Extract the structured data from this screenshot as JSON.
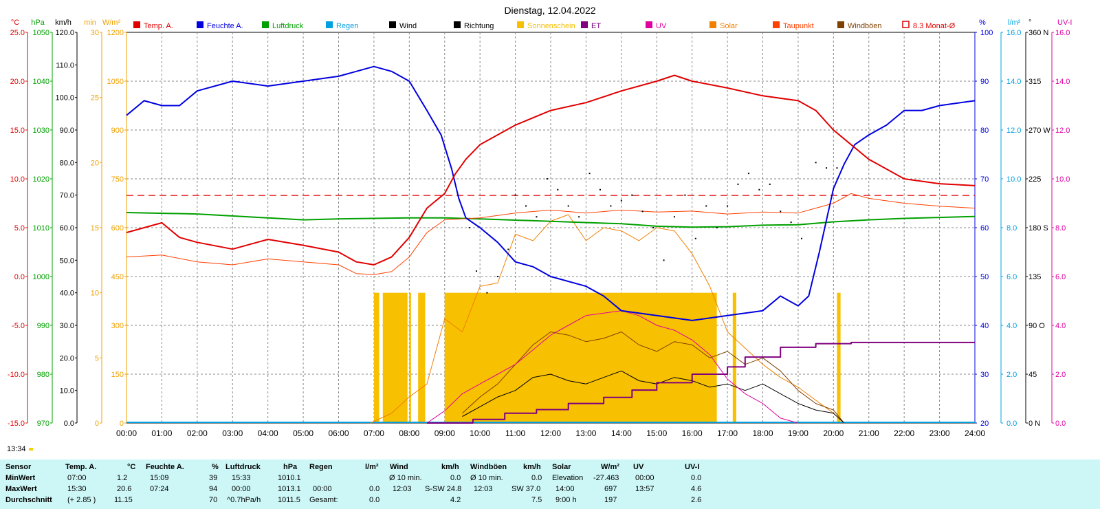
{
  "chart_data": {
    "type": "line",
    "title": "Dienstag, 12.04.2022",
    "x_ticks": [
      "00:00",
      "01:00",
      "02:00",
      "03:00",
      "04:00",
      "05:00",
      "06:00",
      "07:00",
      "08:00",
      "09:00",
      "10:00",
      "11:00",
      "12:00",
      "13:00",
      "14:00",
      "15:00",
      "16:00",
      "17:00",
      "18:00",
      "19:00",
      "20:00",
      "21:00",
      "22:00",
      "23:00",
      "24:00"
    ],
    "grid": true,
    "reference_line": {
      "name": "8.3 Monat-Ø",
      "value_c": 8.3,
      "color": "#e00000"
    },
    "axes_left": [
      {
        "unit": "°C",
        "color": "#e00000",
        "min": -15,
        "max": 25,
        "ticks": [
          "25.0",
          "20.0",
          "15.0",
          "10.0",
          "5.0",
          "0.0",
          "-5.0",
          "-10.0",
          "-15.0"
        ]
      },
      {
        "unit": "hPa",
        "color": "#00a000",
        "min": 970,
        "max": 1050,
        "ticks": [
          "1050",
          "1040",
          "1030",
          "1020",
          "1010",
          "1000",
          "990",
          "980",
          "970"
        ]
      },
      {
        "unit": "km/h",
        "color": "#000000",
        "min": 0,
        "max": 120,
        "ticks": [
          "120.0",
          "110.0",
          "100.0",
          "90.0",
          "80.0",
          "70.0",
          "60.0",
          "50.0",
          "40.0",
          "30.0",
          "20.0",
          "10.0",
          "0.0"
        ]
      },
      {
        "unit": "min",
        "color": "#f0a000",
        "min": 0,
        "max": 30,
        "ticks": [
          "30",
          "25",
          "20",
          "15",
          "10",
          "5",
          "0"
        ]
      },
      {
        "unit": "W/m²",
        "color": "#f0a000",
        "min": 0,
        "max": 1200,
        "ticks": [
          "1200",
          "1050",
          "900",
          "750",
          "600",
          "450",
          "300",
          "150",
          "0"
        ]
      }
    ],
    "axes_right": [
      {
        "unit": "%",
        "color": "#0000e0",
        "min": 20,
        "max": 100,
        "ticks": [
          "100",
          "90",
          "80",
          "70",
          "60",
          "50",
          "40",
          "30",
          "20"
        ]
      },
      {
        "unit": "l/m²",
        "color": "#00a0e0",
        "min": 0,
        "max": 16,
        "ticks": [
          "16.0",
          "14.0",
          "12.0",
          "10.0",
          "8.0",
          "6.0",
          "4.0",
          "2.0",
          "0.0"
        ]
      },
      {
        "unit": "°",
        "color": "#000000",
        "min": 0,
        "max": 360,
        "ticks": [
          "360 N",
          "315",
          "270 W",
          "225",
          "180 S",
          "135",
          "90 O",
          "45",
          "0 N"
        ]
      },
      {
        "unit": "UV-I",
        "color": "#e000a0",
        "min": 0,
        "max": 16,
        "ticks": [
          "16.0",
          "14.0",
          "12.0",
          "10.0",
          "8.0",
          "6.0",
          "4.0",
          "2.0",
          "0.0"
        ]
      }
    ],
    "legend": [
      {
        "name": "Temp. A.",
        "color": "#e00000"
      },
      {
        "name": "Feuchte A.",
        "color": "#0000e0"
      },
      {
        "name": "Luftdruck",
        "color": "#00a000"
      },
      {
        "name": "Regen",
        "color": "#00a0e0"
      },
      {
        "name": "Wind",
        "color": "#000000"
      },
      {
        "name": "Richtung",
        "color": "#000000"
      },
      {
        "name": "Sonnenschein",
        "color": "#f7c000"
      },
      {
        "name": "ET",
        "color": "#800080"
      },
      {
        "name": "UV",
        "color": "#e000a0"
      },
      {
        "name": "Solar",
        "color": "#f08000"
      },
      {
        "name": "Taupunkt",
        "color": "#ff4000"
      },
      {
        "name": "Windböen",
        "color": "#804000"
      },
      {
        "name": "8.3 Monat-Ø",
        "color": "#e00000"
      }
    ],
    "series": [
      {
        "name": "Temp. A.",
        "axis": "°C",
        "color": "#e00000",
        "x": [
          0,
          0.5,
          1,
          1.5,
          2,
          3,
          4,
          5,
          6,
          6.5,
          7,
          7.5,
          8,
          8.5,
          9,
          9.3,
          9.6,
          10,
          11,
          12,
          13,
          14,
          15,
          15.5,
          16,
          17,
          18,
          19,
          19.5,
          20,
          20.5,
          21,
          22,
          23,
          24
        ],
        "y": [
          4.5,
          5.0,
          5.5,
          4.0,
          3.5,
          2.8,
          3.8,
          3.2,
          2.5,
          1.5,
          1.2,
          2.0,
          4.0,
          7.0,
          8.5,
          10.5,
          12.0,
          13.5,
          15.5,
          17.0,
          17.8,
          19.0,
          20.0,
          20.6,
          20.0,
          19.3,
          18.5,
          18.0,
          17.0,
          15.0,
          13.5,
          12.0,
          10.0,
          9.5,
          9.3
        ]
      },
      {
        "name": "Taupunkt",
        "axis": "°C",
        "color": "#ff4000",
        "x": [
          0,
          1,
          2,
          3,
          4,
          5,
          6,
          6.5,
          7,
          7.5,
          8,
          8.5,
          9,
          10,
          11,
          12,
          13,
          14,
          15,
          16,
          17,
          18,
          19,
          19.5,
          20,
          20.5,
          21,
          22,
          23,
          24
        ],
        "y": [
          2.0,
          2.2,
          1.5,
          1.2,
          1.8,
          1.5,
          1.2,
          0.3,
          0.2,
          0.5,
          2.0,
          4.5,
          5.8,
          6.0,
          6.5,
          6.8,
          6.5,
          6.8,
          6.6,
          6.7,
          6.4,
          6.6,
          6.5,
          7.0,
          7.5,
          8.5,
          8.0,
          7.5,
          7.2,
          7.0
        ]
      },
      {
        "name": "Feuchte A.",
        "axis": "%",
        "color": "#0000e0",
        "x": [
          0,
          0.5,
          1,
          1.5,
          2,
          3,
          4,
          5,
          6,
          6.5,
          7,
          7.5,
          8,
          8.5,
          8.9,
          9.2,
          9.4,
          9.6,
          10,
          10.5,
          11,
          11.5,
          12,
          13,
          13.5,
          14,
          15,
          16,
          17,
          18,
          18.5,
          19,
          19.3,
          19.6,
          20,
          20.3,
          20.6,
          21,
          21.5,
          22,
          22.5,
          23,
          24
        ],
        "y": [
          83,
          86,
          85,
          85,
          88,
          90,
          89,
          90,
          91,
          92,
          93,
          92,
          90,
          84,
          79,
          72,
          66,
          62,
          60,
          57,
          53,
          52,
          50,
          48,
          46,
          43,
          42,
          41,
          42,
          43,
          46,
          44,
          46,
          55,
          68,
          73,
          77,
          79,
          81,
          84,
          84,
          85,
          86
        ]
      },
      {
        "name": "Luftdruck",
        "axis": "hPa",
        "color": "#00a000",
        "x": [
          0,
          2,
          4,
          5,
          6,
          8,
          9,
          10,
          12,
          14,
          15,
          16,
          17,
          18,
          19,
          20,
          21,
          22,
          23,
          24
        ],
        "y": [
          1013.1,
          1012.8,
          1012.0,
          1011.6,
          1011.8,
          1012.0,
          1012.0,
          1011.8,
          1011.3,
          1010.8,
          1010.3,
          1010.1,
          1010.2,
          1010.5,
          1010.6,
          1011.2,
          1011.6,
          1011.9,
          1012.1,
          1012.3
        ]
      },
      {
        "name": "Solar",
        "axis": "W/m²",
        "color": "#f08000",
        "x": [
          6.9,
          7.5,
          8,
          8.5,
          9,
          9.5,
          10,
          10.5,
          11,
          11.5,
          12,
          12.5,
          13,
          13.5,
          14,
          14.5,
          15,
          15.5,
          16,
          16.5,
          17,
          17.5,
          18,
          18.5,
          19,
          19.5,
          20,
          20.3
        ],
        "y": [
          0,
          30,
          80,
          120,
          320,
          280,
          420,
          430,
          580,
          560,
          620,
          640,
          560,
          600,
          590,
          560,
          600,
          590,
          520,
          420,
          280,
          230,
          180,
          140,
          110,
          70,
          30,
          0
        ]
      },
      {
        "name": "UV",
        "axis": "UV-I",
        "color": "#e000a0",
        "x": [
          8.5,
          9,
          9.5,
          10,
          10.5,
          11,
          11.5,
          12,
          12.5,
          13,
          13.5,
          14,
          14.5,
          15,
          15.5,
          16,
          16.5,
          17,
          17.5,
          18,
          18.5,
          19
        ],
        "y": [
          0,
          0.5,
          1.2,
          1.6,
          2.0,
          2.4,
          3.0,
          3.6,
          4.0,
          4.4,
          4.5,
          4.6,
          4.4,
          4.0,
          3.8,
          3.4,
          2.8,
          1.8,
          1.2,
          0.8,
          0.2,
          0
        ]
      },
      {
        "name": "Wind",
        "axis": "km/h",
        "color": "#000000",
        "x": [
          9.5,
          10,
          10.5,
          11,
          11.5,
          12,
          12.5,
          13,
          13.5,
          14,
          14.5,
          15,
          15.5,
          16,
          16.5,
          17,
          17.5,
          18,
          18.5,
          19,
          19.5,
          20,
          20.3
        ],
        "y": [
          2,
          5,
          8,
          10,
          14,
          15,
          13,
          12,
          14,
          16,
          13,
          12,
          14,
          13,
          11,
          12,
          10,
          12,
          9,
          6,
          4,
          3,
          0
        ]
      },
      {
        "name": "Windböen",
        "axis": "km/h",
        "color": "#804000",
        "x": [
          9.5,
          10,
          10.5,
          11,
          11.5,
          12,
          12.5,
          13,
          13.5,
          14,
          14.5,
          15,
          15.5,
          16,
          16.5,
          17,
          17.5,
          18,
          18.5,
          19,
          19.5,
          20,
          20.3
        ],
        "y": [
          3,
          8,
          12,
          18,
          24,
          28,
          27,
          25,
          26,
          28,
          24,
          22,
          25,
          24,
          20,
          22,
          18,
          20,
          16,
          10,
          6,
          4,
          0
        ]
      },
      {
        "name": "ET",
        "axis": "l/m²",
        "color": "#800080",
        "x": [
          8.5,
          9.8,
          9.8,
          10.7,
          10.7,
          11.6,
          11.6,
          12.5,
          12.5,
          13.5,
          13.5,
          14.3,
          14.3,
          15.0,
          15.0,
          16.0,
          16.0,
          17.0,
          17.0,
          17.5,
          17.5,
          18.5,
          18.5,
          19.5,
          19.5,
          20.5,
          20.5,
          24.0
        ],
        "y": [
          0,
          0,
          0.15,
          0.15,
          0.4,
          0.4,
          0.55,
          0.55,
          0.8,
          0.8,
          1.05,
          1.05,
          1.35,
          1.35,
          1.65,
          1.65,
          2.0,
          2.0,
          2.3,
          2.3,
          2.7,
          2.7,
          3.1,
          3.1,
          3.25,
          3.25,
          3.3,
          3.3
        ]
      },
      {
        "name": "Sonnenschein",
        "axis": "min",
        "color": "#f7c000",
        "type": "bar",
        "segments": [
          [
            7.0,
            7.15
          ],
          [
            7.25,
            7.95
          ],
          [
            8.0,
            8.05
          ],
          [
            8.25,
            8.45
          ],
          [
            9.0,
            16.7
          ],
          [
            17.15,
            17.25
          ],
          [
            20.1,
            20.2
          ]
        ],
        "value_min": 10
      }
    ],
    "wind_direction_points": {
      "name": "Richtung",
      "axis": "°",
      "x": [
        9.7,
        9.9,
        10.2,
        10.5,
        10.8,
        11.0,
        11.3,
        11.6,
        11.9,
        12.2,
        12.5,
        12.8,
        13.1,
        13.4,
        13.7,
        14.0,
        14.3,
        14.6,
        14.9,
        15.2,
        15.5,
        15.8,
        16.1,
        16.4,
        16.7,
        17.0,
        17.3,
        17.6,
        17.9,
        18.2,
        18.5,
        18.8,
        19.1,
        19.5,
        19.8,
        20.1
      ],
      "y": [
        180,
        140,
        120,
        135,
        160,
        210,
        200,
        190,
        225,
        215,
        200,
        190,
        230,
        215,
        200,
        205,
        210,
        195,
        180,
        150,
        190,
        210,
        170,
        200,
        180,
        200,
        220,
        230,
        215,
        220,
        195,
        185,
        170,
        240,
        235,
        235
      ]
    }
  },
  "stats": {
    "header": {
      "sensor": "Sensor",
      "temp": "Temp. A.",
      "temp_unit": "°C",
      "hum": "Feuchte A.",
      "hum_unit": "%",
      "press": "Luftdruck",
      "press_unit": "hPa",
      "rain": "Regen",
      "rain_unit": "l/m²",
      "wind": "Wind",
      "wind_unit": "km/h",
      "gust": "Windböen",
      "gust_unit": "km/h",
      "solar": "Solar",
      "solar_unit": "W/m²",
      "uv": "UV",
      "uv_unit": "UV-I"
    },
    "rows": [
      {
        "label": "MinWert",
        "temp_time": "07:00",
        "temp_val": "1.2",
        "hum_time": "15:09",
        "hum_val": "39",
        "press_time": "15:33",
        "press_val": "1010.1",
        "rain_time": "",
        "rain_val": "",
        "wind_time": "Ø 10 min.",
        "wind_val": "0.0",
        "gust_time": "Ø 10 min.",
        "gust_val": "0.0",
        "solar_time": "Elevation",
        "solar_val": "-27.463",
        "uv_time": "00:00",
        "uv_val": "0.0"
      },
      {
        "label": "MaxWert",
        "temp_time": "15:30",
        "temp_val": "20.6",
        "hum_time": "07:24",
        "hum_val": "94",
        "press_time": "00:00",
        "press_val": "1013.1",
        "rain_time": "00:00",
        "rain_val": "0.0",
        "wind_time": "12:03",
        "wind_val": "S-SW 24.8",
        "gust_time": "12:03",
        "gust_val": "SW 37.0",
        "solar_time": "14:00",
        "solar_val": "697",
        "uv_time": "13:57",
        "uv_val": "4.6"
      },
      {
        "label": "Durchschnitt",
        "temp_time": "(+ 2.85 )",
        "temp_val": "11.15",
        "hum_time": "",
        "hum_val": "70",
        "press_time": "^0.7hPa/h",
        "press_val": "1011.5",
        "rain_time": "Gesamt:",
        "rain_val": "0.0",
        "wind_time": "",
        "wind_val": "4.2",
        "gust_time": "",
        "gust_val": "7.5",
        "solar_time": "9:00 h",
        "solar_val": "197",
        "uv_time": "",
        "uv_val": "2.6"
      }
    ]
  },
  "sunrise_time": "13:34"
}
